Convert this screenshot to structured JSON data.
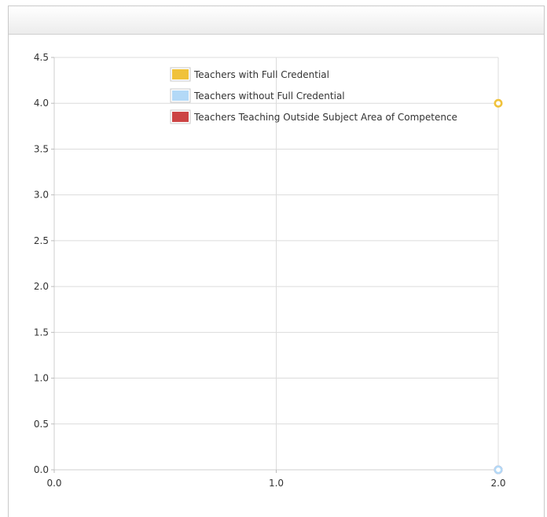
{
  "panel": {
    "title": ""
  },
  "chart_data": {
    "type": "scatter",
    "title": "",
    "xlabel": "",
    "ylabel": "",
    "xlim": [
      0.0,
      2.0
    ],
    "ylim": [
      0.0,
      4.5
    ],
    "x_ticks": [
      "0.0",
      "1.0",
      "2.0"
    ],
    "y_ticks": [
      "0.0",
      "0.5",
      "1.0",
      "1.5",
      "2.0",
      "2.5",
      "3.0",
      "3.5",
      "4.0",
      "4.5"
    ],
    "x_tick_values": [
      0,
      1,
      2
    ],
    "y_tick_values": [
      0,
      0.5,
      1,
      1.5,
      2,
      2.5,
      3,
      3.5,
      4,
      4.5
    ],
    "grid": true,
    "legend_position": "top-center",
    "series": [
      {
        "name": "Teachers with Full Credential",
        "color": "#f0c23b",
        "points": [
          {
            "x": 2.0,
            "y": 4.0
          }
        ]
      },
      {
        "name": "Teachers without Full Credential",
        "color": "#b3d9f7",
        "points": [
          {
            "x": 2.0,
            "y": 0.0
          }
        ]
      },
      {
        "name": "Teachers Teaching Outside Subject Area of Competence",
        "color": "#cc4444",
        "points": [
          {
            "x": 2.0,
            "y": 0.0
          }
        ]
      }
    ]
  }
}
